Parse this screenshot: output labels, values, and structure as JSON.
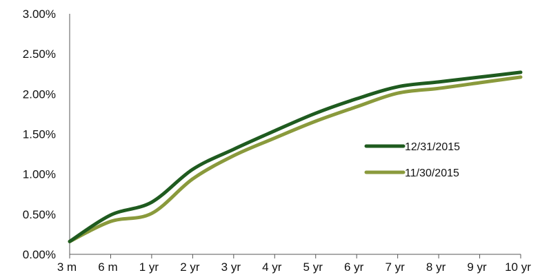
{
  "chart_data": {
    "type": "line",
    "title": "",
    "xlabel": "",
    "ylabel": "",
    "categories": [
      "3 m",
      "6 m",
      "1 yr",
      "2 yr",
      "3 yr",
      "4 yr",
      "5 yr",
      "6 yr",
      "7 yr",
      "8 yr",
      "9 yr",
      "10 yr"
    ],
    "y_ticks": [
      "0.00%",
      "0.50%",
      "1.00%",
      "1.50%",
      "2.00%",
      "2.50%",
      "3.00%"
    ],
    "ylim": [
      0,
      3
    ],
    "series": [
      {
        "name": "12/31/2015",
        "color": "#1f5b1f",
        "values": [
          0.16,
          0.49,
          0.65,
          1.06,
          1.31,
          1.54,
          1.76,
          1.94,
          2.09,
          2.15,
          2.21,
          2.27
        ]
      },
      {
        "name": "11/30/2015",
        "color": "#8a9a3c",
        "values": [
          0.16,
          0.41,
          0.51,
          0.94,
          1.23,
          1.45,
          1.66,
          1.84,
          2.01,
          2.07,
          2.14,
          2.21
        ]
      }
    ],
    "grid": false,
    "legend_position": "right"
  }
}
